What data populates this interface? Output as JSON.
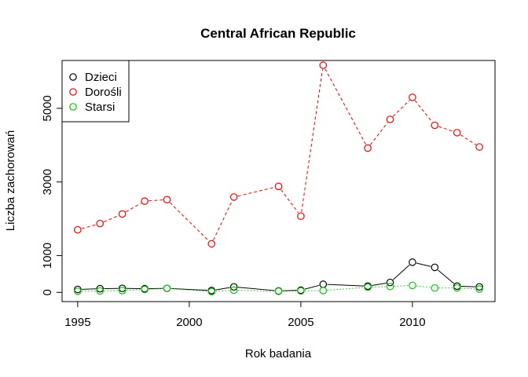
{
  "chart_data": {
    "type": "line",
    "title": "Central African Republic",
    "xlabel": "Rok badania",
    "ylabel": "Liczba zachorowań",
    "xlim": [
      1994.3,
      2013.7
    ],
    "ylim": [
      -250,
      6300
    ],
    "x_ticks": [
      1995,
      2000,
      2005,
      2010
    ],
    "y_ticks": [
      0,
      1000,
      3000,
      5000
    ],
    "legend_position": "top-left",
    "series": [
      {
        "name": "Dzieci",
        "color": "#000000",
        "line_style": "solid",
        "x": [
          1995,
          1996,
          1997,
          1998,
          1999,
          2001,
          2002,
          2004,
          2005,
          2006,
          2008,
          2009,
          2010,
          2011,
          2012,
          2013
        ],
        "y": [
          80,
          100,
          110,
          100,
          110,
          50,
          150,
          40,
          60,
          220,
          170,
          270,
          820,
          680,
          170,
          150
        ]
      },
      {
        "name": "Dorośli",
        "color": "#ff0000",
        "line_style": "dashed",
        "x": [
          1995,
          1996,
          1997,
          1998,
          1999,
          2001,
          2002,
          2004,
          2005,
          2006,
          2008,
          2009,
          2010,
          2011,
          2012,
          2013
        ],
        "y": [
          1700,
          1870,
          2130,
          2480,
          2520,
          1320,
          2590,
          2880,
          2070,
          6170,
          3920,
          4700,
          5300,
          4540,
          4340,
          3950
        ]
      },
      {
        "name": "Starsi",
        "color": "#00cd00",
        "line_style": "dotted",
        "x": [
          1995,
          1996,
          1997,
          1998,
          1999,
          2001,
          2002,
          2004,
          2005,
          2006,
          2008,
          2009,
          2010,
          2011,
          2012,
          2013
        ],
        "y": [
          30,
          40,
          50,
          80,
          110,
          20,
          60,
          30,
          40,
          50,
          140,
          160,
          190,
          120,
          120,
          90
        ]
      }
    ]
  }
}
